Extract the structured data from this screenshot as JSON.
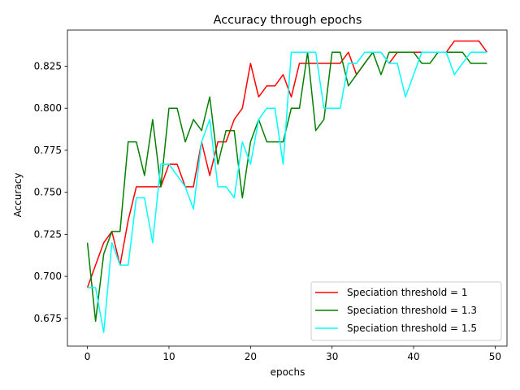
{
  "chart_data": {
    "type": "line",
    "title": "Accuracy  through epochs",
    "xlabel": "epochs",
    "ylabel": "Accuracy",
    "xlim": [
      -2.45,
      51.45
    ],
    "ylim": [
      0.6585,
      0.8465
    ],
    "xticks": [
      0,
      10,
      20,
      30,
      40,
      50
    ],
    "yticks": [
      0.675,
      0.7,
      0.725,
      0.75,
      0.775,
      0.8,
      0.825
    ],
    "ytick_labels": [
      "0.675",
      "0.700",
      "0.725",
      "0.750",
      "0.775",
      "0.800",
      "0.825"
    ],
    "grid": false,
    "legend_position": "lower right",
    "x": [
      0,
      1,
      2,
      3,
      4,
      5,
      6,
      7,
      8,
      9,
      10,
      11,
      12,
      13,
      14,
      15,
      16,
      17,
      18,
      19,
      20,
      21,
      22,
      23,
      24,
      25,
      26,
      27,
      28,
      29,
      30,
      31,
      32,
      33,
      34,
      35,
      36,
      37,
      38,
      39,
      40,
      41,
      42,
      43,
      44,
      45,
      46,
      47,
      48,
      49
    ],
    "series": [
      {
        "name": "Speciation threshold = 1",
        "color": "#ff0000",
        "values": [
          0.6933,
          0.7067,
          0.72,
          0.7267,
          0.7067,
          0.7333,
          0.7533,
          0.7533,
          0.7533,
          0.7533,
          0.7667,
          0.7667,
          0.7533,
          0.7533,
          0.78,
          0.76,
          0.78,
          0.78,
          0.7933,
          0.8,
          0.8267,
          0.8067,
          0.8133,
          0.8133,
          0.82,
          0.8067,
          0.8267,
          0.8267,
          0.8267,
          0.8267,
          0.8267,
          0.8267,
          0.8333,
          0.82,
          0.8267,
          0.8333,
          0.8333,
          0.8267,
          0.8333,
          0.8333,
          0.8333,
          0.8333,
          0.8333,
          0.8333,
          0.8333,
          0.84,
          0.84,
          0.84,
          0.84,
          0.8333
        ]
      },
      {
        "name": "Speciation threshold = 1.3",
        "color": "#008000",
        "values": [
          0.72,
          0.6733,
          0.7133,
          0.7267,
          0.7267,
          0.78,
          0.78,
          0.76,
          0.7933,
          0.7533,
          0.8,
          0.8,
          0.78,
          0.7933,
          0.7867,
          0.8067,
          0.7667,
          0.7867,
          0.7867,
          0.7467,
          0.78,
          0.7933,
          0.78,
          0.78,
          0.78,
          0.8,
          0.8,
          0.8333,
          0.7867,
          0.7933,
          0.8333,
          0.8333,
          0.8133,
          0.82,
          0.8267,
          0.8333,
          0.82,
          0.8333,
          0.8333,
          0.8333,
          0.8333,
          0.8267,
          0.8267,
          0.8333,
          0.8333,
          0.8333,
          0.8333,
          0.8267,
          0.8267,
          0.8267
        ]
      },
      {
        "name": "Speciation threshold = 1.5",
        "color": "#00ffff",
        "values": [
          0.6933,
          0.6933,
          0.6667,
          0.72,
          0.7067,
          0.7067,
          0.7467,
          0.7467,
          0.72,
          0.7667,
          0.7667,
          0.76,
          0.7533,
          0.74,
          0.78,
          0.7933,
          0.7533,
          0.7533,
          0.7467,
          0.78,
          0.7667,
          0.7933,
          0.8,
          0.8,
          0.7667,
          0.8333,
          0.8333,
          0.8333,
          0.8333,
          0.8,
          0.8,
          0.8,
          0.8267,
          0.8267,
          0.8333,
          0.8333,
          0.8333,
          0.8267,
          0.8267,
          0.8067,
          0.82,
          0.8333,
          0.8333,
          0.8333,
          0.8333,
          0.82,
          0.8267,
          0.8333,
          0.8333,
          0.8333
        ]
      }
    ]
  }
}
